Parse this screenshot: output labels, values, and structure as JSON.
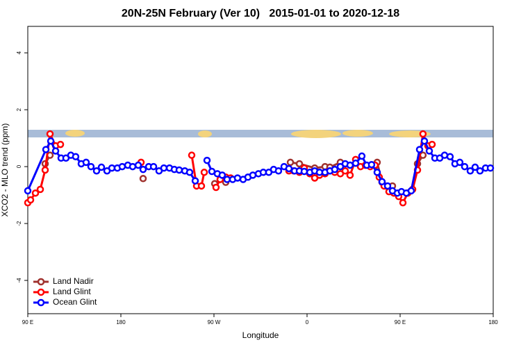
{
  "chart_data": {
    "type": "line",
    "title": "20N-25N February (Ver 10)   2015-01-01 to 2020-12-18",
    "xlabel": "Longitude",
    "ylabel": "XCO2 - MLO trend (ppm)",
    "xlim": [
      90,
      540
    ],
    "ylim": [
      -5.17,
      4.93
    ],
    "xticks": [
      {
        "value": 90,
        "label": "90 E"
      },
      {
        "value": 180,
        "label": "180"
      },
      {
        "value": 270,
        "label": "90 W"
      },
      {
        "value": 360,
        "label": "0"
      },
      {
        "value": 450,
        "label": "90 E"
      },
      {
        "value": 540,
        "label": "180"
      }
    ],
    "yticks": [
      -4,
      -2,
      0,
      2,
      4
    ],
    "legend": "bottomleft",
    "series": [
      {
        "name": "Land Nadir",
        "color": "#a0322e",
        "x": [
          106.8,
          111.5,
          null,
          201.5,
          null,
          270.7,
          276,
          281.4,
          null,
          343.9,
          352.6,
          367.4,
          377.4,
          382.1,
          392.2,
          null,
          427.8,
          432.5,
          442.6,
          null,
          466.8,
          472.1
        ],
        "values": [
          0.1,
          0.4,
          null,
          -0.42,
          null,
          -0.6,
          -0.45,
          -0.55,
          null,
          0.15,
          0.1,
          -0.05,
          0,
          -0.02,
          0.15,
          null,
          0.15,
          -0.55,
          -0.68,
          null,
          0.1,
          0.4
        ]
      },
      {
        "name": "Land Glint",
        "color": "#ff0000",
        "x": [
          90,
          92.7,
          97.4,
          102.1,
          106.8,
          111.5,
          116.9,
          121.6,
          null,
          199.5,
          null,
          248.5,
          253.2,
          257.9,
          260.6,
          null,
          272,
          276,
          281.4,
          286.1,
          null,
          342.5,
          347.2,
          352.6,
          357.3,
          362.7,
          367.4,
          372.1,
          377.4,
          382.1,
          386.8,
          392.2,
          396.9,
          401.6,
          407,
          411.7,
          416.4,
          421.1,
          425.8,
          429.8,
          434.5,
          439.2,
          443.9,
          448.6,
          452.7,
          457.4,
          462.1,
          466.8,
          472.1,
          476.8,
          480.9
        ],
        "values": [
          -1.27,
          -1.17,
          -0.93,
          -0.8,
          -0.12,
          1.15,
          0.73,
          0.78,
          null,
          0.15,
          null,
          0.4,
          -0.68,
          -0.68,
          -0.2,
          null,
          -0.73,
          -0.45,
          -0.37,
          -0.4,
          null,
          -0.15,
          -0.15,
          -0.2,
          -0.05,
          -0.25,
          -0.4,
          -0.3,
          -0.25,
          -0.15,
          -0.2,
          -0.25,
          -0.15,
          -0.3,
          0.25,
          0,
          0.05,
          0,
          0.05,
          -0.37,
          -0.68,
          -0.88,
          -0.93,
          -1.05,
          -1.27,
          -0.93,
          -0.8,
          -0.12,
          1.15,
          0.73,
          0.78
        ]
      },
      {
        "name": "Ocean Glint",
        "color": "#0000ff",
        "x": [
          90,
          107.5,
          112.2,
          116.9,
          122.2,
          126.9,
          131.6,
          136.3,
          141.7,
          146.4,
          151.1,
          156.5,
          161.2,
          166.6,
          171.3,
          176.6,
          181.3,
          186.7,
          191.4,
          196.8,
          201.5,
          206.9,
          211.6,
          216.9,
          221.6,
          227,
          231.7,
          236.4,
          241.8,
          246.5,
          251.9,
          null,
          263.3,
          268,
          273.3,
          278,
          282.7,
          288.1,
          292.8,
          298.2,
          302.9,
          307.6,
          313,
          317.7,
          323,
          327.7,
          332.4,
          337.8,
          342.5,
          347.9,
          352.6,
          357.3,
          362.7,
          367.4,
          372.1,
          377.4,
          382.1,
          386.8,
          392.2,
          396.9,
          401.6,
          407,
          413,
          417.7,
          422.4,
          427.8,
          432.5,
          437.9,
          442.6,
          447.3,
          451.3,
          456,
          460.7,
          468.8,
          473.5,
          478.2,
          483.6,
          488.3,
          493,
          498.3,
          503,
          507.7,
          512.4,
          517.8,
          522.5,
          527.2,
          532.6,
          537.3
        ],
        "values": [
          -0.85,
          0.6,
          0.9,
          0.55,
          0.3,
          0.3,
          0.4,
          0.35,
          0.1,
          0.15,
          0,
          -0.15,
          -0.02,
          -0.15,
          -0.05,
          -0.05,
          0,
          0.05,
          0,
          0.05,
          -0.1,
          0,
          0,
          -0.15,
          -0.05,
          -0.05,
          -0.1,
          -0.12,
          -0.15,
          -0.2,
          -0.5,
          null,
          0.22,
          -0.17,
          -0.25,
          -0.3,
          -0.45,
          -0.45,
          -0.4,
          -0.45,
          -0.37,
          -0.3,
          -0.25,
          -0.2,
          -0.2,
          -0.1,
          -0.15,
          0,
          -0.07,
          -0.15,
          -0.15,
          -0.17,
          -0.2,
          -0.15,
          -0.2,
          -0.2,
          -0.15,
          -0.1,
          0,
          0.1,
          0.05,
          0.12,
          0.37,
          0.05,
          0.07,
          -0.2,
          -0.53,
          -0.68,
          -0.85,
          -0.93,
          -0.88,
          -0.93,
          -0.85,
          0.6,
          0.9,
          0.55,
          0.3,
          0.3,
          0.4,
          0.35,
          0.1,
          0.15,
          0,
          -0.15,
          -0.02,
          -0.15,
          -0.05,
          -0.05
        ]
      }
    ]
  }
}
